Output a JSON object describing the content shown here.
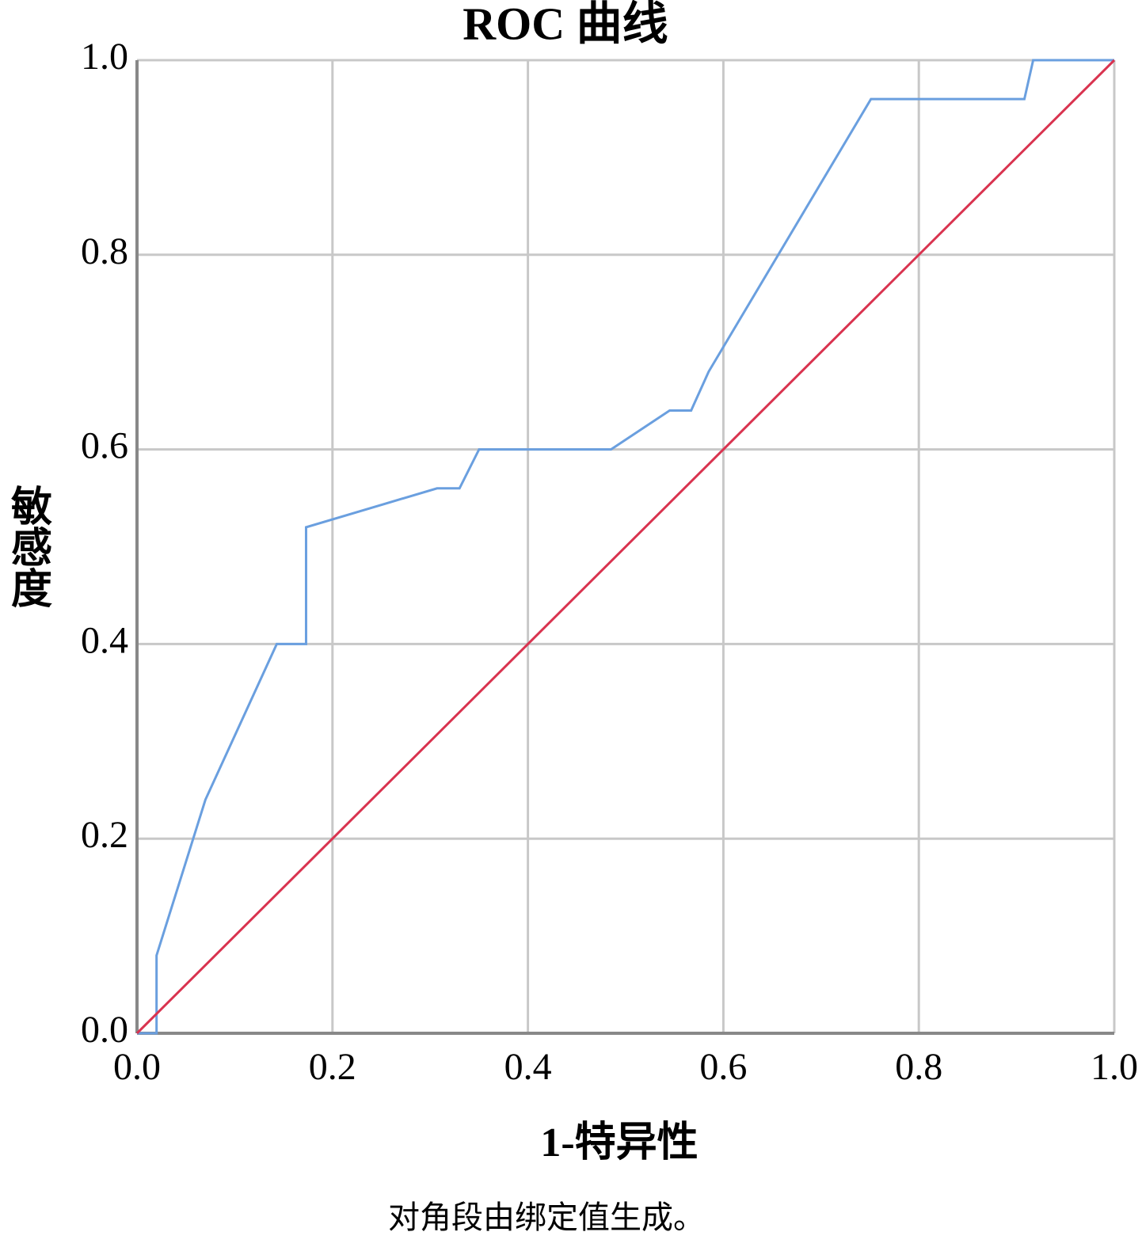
{
  "chart_data": {
    "type": "line",
    "title": "ROC 曲线",
    "x_label": "1-特异性",
    "y_label": "敏感度",
    "footnote": "对角段由绑定值生成。",
    "xlim": [
      0,
      1
    ],
    "ylim": [
      0,
      1
    ],
    "xticks": [
      {
        "value": 0,
        "label": "0.0"
      },
      0.2,
      0.4,
      0.6,
      0.8,
      {
        "value": 1,
        "label": "1.0"
      }
    ],
    "yticks": [
      {
        "value": 0,
        "label": "0.0"
      },
      0.2,
      0.4,
      0.6,
      0.8,
      {
        "value": 1,
        "label": "1.0"
      }
    ],
    "grid": true,
    "series": [
      {
        "color": "#6a9fdf",
        "x": [
          0,
          0.02,
          0.02,
          0.07,
          0.143,
          0.173,
          0.173,
          0.307,
          0.33,
          0.35,
          0.485,
          0.545,
          0.567,
          0.585,
          0.751,
          0.908,
          0.917,
          1
        ],
        "values": [
          0,
          0,
          0.08,
          0.24,
          0.4,
          0.4,
          0.52,
          0.56,
          0.56,
          0.6,
          0.6,
          0.64,
          0.64,
          0.68,
          0.96,
          0.96,
          1,
          1
        ]
      },
      {
        "color": "#d9334f",
        "x": [
          0,
          1
        ],
        "values": [
          0,
          1
        ]
      }
    ]
  }
}
